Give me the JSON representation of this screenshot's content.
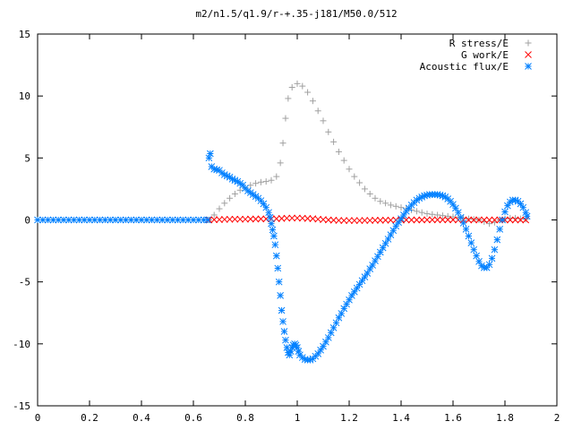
{
  "chart_data": {
    "type": "scatter",
    "title": "m2/n1.5/q1.9/r-+.35-j181/M50.0/512",
    "xlabel": "",
    "ylabel": "",
    "xlim": [
      0,
      2
    ],
    "ylim": [
      -15,
      15
    ],
    "xticks": [
      0,
      0.2,
      0.4,
      0.6,
      0.8,
      1,
      1.2,
      1.4,
      1.6,
      1.8,
      2
    ],
    "xtick_labels": [
      "0",
      "0.2",
      "0.4",
      "0.6",
      "0.8",
      "1",
      "1.2",
      "1.4",
      "1.6",
      "1.8",
      "2"
    ],
    "yticks": [
      -15,
      -10,
      -5,
      0,
      5,
      10,
      15
    ],
    "ytick_labels": [
      "-15",
      "-10",
      "-5",
      "0",
      "5",
      "10",
      "15"
    ],
    "grid": false,
    "legend_position": "top-right",
    "series": [
      {
        "name": "R stress/E",
        "marker": "plus",
        "color": "#a0a0a0",
        "points": [
          [
            0.66,
            0.0
          ],
          [
            0.68,
            0.4
          ],
          [
            0.7,
            0.9
          ],
          [
            0.72,
            1.35
          ],
          [
            0.74,
            1.75
          ],
          [
            0.76,
            2.1
          ],
          [
            0.78,
            2.4
          ],
          [
            0.8,
            2.6
          ],
          [
            0.82,
            2.8
          ],
          [
            0.84,
            2.95
          ],
          [
            0.86,
            3.05
          ],
          [
            0.88,
            3.1
          ],
          [
            0.9,
            3.2
          ],
          [
            0.92,
            3.5
          ],
          [
            0.935,
            4.6
          ],
          [
            0.945,
            6.2
          ],
          [
            0.955,
            8.2
          ],
          [
            0.965,
            9.8
          ],
          [
            0.98,
            10.7
          ],
          [
            1.0,
            11.0
          ],
          [
            1.02,
            10.8
          ],
          [
            1.04,
            10.3
          ],
          [
            1.06,
            9.6
          ],
          [
            1.08,
            8.8
          ],
          [
            1.1,
            8.0
          ],
          [
            1.12,
            7.1
          ],
          [
            1.14,
            6.3
          ],
          [
            1.16,
            5.5
          ],
          [
            1.18,
            4.8
          ],
          [
            1.2,
            4.1
          ],
          [
            1.22,
            3.5
          ],
          [
            1.24,
            3.0
          ],
          [
            1.26,
            2.5
          ],
          [
            1.28,
            2.1
          ],
          [
            1.3,
            1.75
          ],
          [
            1.32,
            1.5
          ],
          [
            1.34,
            1.35
          ],
          [
            1.36,
            1.2
          ],
          [
            1.38,
            1.1
          ],
          [
            1.4,
            1.0
          ],
          [
            1.42,
            0.9
          ],
          [
            1.44,
            0.8
          ],
          [
            1.46,
            0.7
          ],
          [
            1.48,
            0.6
          ],
          [
            1.5,
            0.5
          ],
          [
            1.52,
            0.45
          ],
          [
            1.54,
            0.4
          ],
          [
            1.56,
            0.35
          ],
          [
            1.58,
            0.3
          ],
          [
            1.6,
            0.25
          ],
          [
            1.62,
            0.2
          ],
          [
            1.64,
            0.15
          ],
          [
            1.66,
            0.1
          ],
          [
            1.68,
            0.05
          ],
          [
            1.7,
            0.0
          ],
          [
            1.72,
            -0.15
          ],
          [
            1.74,
            -0.3
          ],
          [
            1.76,
            -0.2
          ],
          [
            1.78,
            0.0
          ],
          [
            1.8,
            0.1
          ],
          [
            1.82,
            0.15
          ],
          [
            1.84,
            0.15
          ],
          [
            1.86,
            0.1
          ],
          [
            1.88,
            0.05
          ]
        ]
      },
      {
        "name": "G work/E",
        "marker": "cross",
        "color": "#ff0000",
        "points": [
          [
            0.66,
            0.0
          ],
          [
            0.68,
            0.02
          ],
          [
            0.7,
            0.03
          ],
          [
            0.72,
            0.04
          ],
          [
            0.74,
            0.05
          ],
          [
            0.76,
            0.06
          ],
          [
            0.78,
            0.06
          ],
          [
            0.8,
            0.06
          ],
          [
            0.82,
            0.07
          ],
          [
            0.84,
            0.07
          ],
          [
            0.86,
            0.08
          ],
          [
            0.88,
            0.08
          ],
          [
            0.9,
            0.08
          ],
          [
            0.92,
            0.1
          ],
          [
            0.94,
            0.12
          ],
          [
            0.96,
            0.14
          ],
          [
            0.98,
            0.15
          ],
          [
            1.0,
            0.15
          ],
          [
            1.02,
            0.14
          ],
          [
            1.04,
            0.12
          ],
          [
            1.06,
            0.1
          ],
          [
            1.08,
            0.06
          ],
          [
            1.1,
            0.03
          ],
          [
            1.12,
            0.0
          ],
          [
            1.14,
            -0.02
          ],
          [
            1.16,
            -0.04
          ],
          [
            1.18,
            -0.05
          ],
          [
            1.2,
            -0.05
          ],
          [
            1.22,
            -0.05
          ],
          [
            1.24,
            -0.05
          ],
          [
            1.26,
            -0.04
          ],
          [
            1.28,
            -0.04
          ],
          [
            1.3,
            -0.03
          ],
          [
            1.32,
            -0.03
          ],
          [
            1.34,
            -0.02
          ],
          [
            1.36,
            -0.02
          ],
          [
            1.38,
            -0.01
          ],
          [
            1.4,
            -0.01
          ],
          [
            1.42,
            0.0
          ],
          [
            1.44,
            0.0
          ],
          [
            1.46,
            0.0
          ],
          [
            1.48,
            0.0
          ],
          [
            1.5,
            0.01
          ],
          [
            1.52,
            0.01
          ],
          [
            1.54,
            0.01
          ],
          [
            1.56,
            0.01
          ],
          [
            1.58,
            0.01
          ],
          [
            1.6,
            0.01
          ],
          [
            1.62,
            0.0
          ],
          [
            1.64,
            0.0
          ],
          [
            1.66,
            0.0
          ],
          [
            1.68,
            0.0
          ],
          [
            1.7,
            0.0
          ],
          [
            1.72,
            0.0
          ],
          [
            1.74,
            0.0
          ],
          [
            1.76,
            0.0
          ],
          [
            1.78,
            0.0
          ],
          [
            1.8,
            0.0
          ],
          [
            1.82,
            0.0
          ],
          [
            1.84,
            0.0
          ],
          [
            1.86,
            0.0
          ],
          [
            1.88,
            0.0
          ]
        ]
      },
      {
        "name": "Acoustic flux/E",
        "marker": "star",
        "color": "#0080ff",
        "points": [
          [
            0.0,
            0.0
          ],
          [
            0.02,
            0.0
          ],
          [
            0.04,
            0.0
          ],
          [
            0.06,
            0.0
          ],
          [
            0.08,
            0.0
          ],
          [
            0.1,
            0.0
          ],
          [
            0.12,
            0.0
          ],
          [
            0.14,
            0.0
          ],
          [
            0.16,
            0.0
          ],
          [
            0.18,
            0.0
          ],
          [
            0.2,
            0.0
          ],
          [
            0.22,
            0.0
          ],
          [
            0.24,
            0.0
          ],
          [
            0.26,
            0.0
          ],
          [
            0.28,
            0.0
          ],
          [
            0.3,
            0.0
          ],
          [
            0.32,
            0.0
          ],
          [
            0.34,
            0.0
          ],
          [
            0.36,
            0.0
          ],
          [
            0.38,
            0.0
          ],
          [
            0.4,
            0.0
          ],
          [
            0.42,
            0.0
          ],
          [
            0.44,
            0.0
          ],
          [
            0.46,
            0.0
          ],
          [
            0.48,
            0.0
          ],
          [
            0.5,
            0.0
          ],
          [
            0.52,
            0.0
          ],
          [
            0.54,
            0.0
          ],
          [
            0.56,
            0.0
          ],
          [
            0.58,
            0.0
          ],
          [
            0.6,
            0.0
          ],
          [
            0.62,
            0.0
          ],
          [
            0.64,
            0.0
          ],
          [
            0.655,
            0.0
          ],
          [
            0.66,
            5.0
          ],
          [
            0.665,
            5.35
          ],
          [
            0.67,
            4.3
          ],
          [
            0.68,
            4.1
          ],
          [
            0.69,
            4.05
          ],
          [
            0.7,
            4.0
          ],
          [
            0.71,
            3.8
          ],
          [
            0.72,
            3.65
          ],
          [
            0.73,
            3.55
          ],
          [
            0.74,
            3.45
          ],
          [
            0.75,
            3.3
          ],
          [
            0.76,
            3.2
          ],
          [
            0.77,
            3.1
          ],
          [
            0.78,
            2.95
          ],
          [
            0.79,
            2.8
          ],
          [
            0.8,
            2.55
          ],
          [
            0.81,
            2.35
          ],
          [
            0.82,
            2.2
          ],
          [
            0.83,
            2.05
          ],
          [
            0.84,
            1.9
          ],
          [
            0.85,
            1.75
          ],
          [
            0.86,
            1.55
          ],
          [
            0.87,
            1.3
          ],
          [
            0.88,
            1.0
          ],
          [
            0.89,
            0.6
          ],
          [
            0.895,
            0.2
          ],
          [
            0.9,
            -0.3
          ],
          [
            0.905,
            -0.8
          ],
          [
            0.91,
            -1.3
          ],
          [
            0.915,
            -2.0
          ],
          [
            0.92,
            -2.9
          ],
          [
            0.925,
            -3.9
          ],
          [
            0.93,
            -5.0
          ],
          [
            0.935,
            -6.1
          ],
          [
            0.94,
            -7.3
          ],
          [
            0.945,
            -8.2
          ],
          [
            0.95,
            -9.0
          ],
          [
            0.955,
            -9.7
          ],
          [
            0.96,
            -10.3
          ],
          [
            0.965,
            -10.7
          ],
          [
            0.97,
            -10.9
          ],
          [
            0.975,
            -10.6
          ],
          [
            0.98,
            -10.3
          ],
          [
            0.985,
            -10.1
          ],
          [
            0.99,
            -10.0
          ],
          [
            0.995,
            -10.1
          ],
          [
            1.0,
            -10.3
          ],
          [
            1.005,
            -10.6
          ],
          [
            1.01,
            -10.9
          ],
          [
            1.02,
            -11.1
          ],
          [
            1.03,
            -11.25
          ],
          [
            1.04,
            -11.3
          ],
          [
            1.05,
            -11.3
          ],
          [
            1.06,
            -11.2
          ],
          [
            1.07,
            -11.0
          ],
          [
            1.08,
            -10.8
          ],
          [
            1.09,
            -10.5
          ],
          [
            1.1,
            -10.2
          ],
          [
            1.11,
            -9.85
          ],
          [
            1.12,
            -9.5
          ],
          [
            1.13,
            -9.1
          ],
          [
            1.14,
            -8.7
          ],
          [
            1.15,
            -8.3
          ],
          [
            1.16,
            -7.9
          ],
          [
            1.17,
            -7.55
          ],
          [
            1.18,
            -7.15
          ],
          [
            1.19,
            -6.8
          ],
          [
            1.2,
            -6.45
          ],
          [
            1.21,
            -6.1
          ],
          [
            1.22,
            -5.8
          ],
          [
            1.23,
            -5.5
          ],
          [
            1.24,
            -5.2
          ],
          [
            1.25,
            -4.9
          ],
          [
            1.26,
            -4.6
          ],
          [
            1.27,
            -4.3
          ],
          [
            1.28,
            -3.95
          ],
          [
            1.29,
            -3.65
          ],
          [
            1.3,
            -3.3
          ],
          [
            1.31,
            -2.95
          ],
          [
            1.32,
            -2.6
          ],
          [
            1.33,
            -2.25
          ],
          [
            1.34,
            -1.9
          ],
          [
            1.35,
            -1.55
          ],
          [
            1.36,
            -1.2
          ],
          [
            1.37,
            -0.85
          ],
          [
            1.38,
            -0.5
          ],
          [
            1.39,
            -0.2
          ],
          [
            1.4,
            0.1
          ],
          [
            1.41,
            0.4
          ],
          [
            1.42,
            0.7
          ],
          [
            1.43,
            0.95
          ],
          [
            1.44,
            1.2
          ],
          [
            1.45,
            1.4
          ],
          [
            1.46,
            1.6
          ],
          [
            1.47,
            1.75
          ],
          [
            1.48,
            1.85
          ],
          [
            1.49,
            1.95
          ],
          [
            1.5,
            2.0
          ],
          [
            1.51,
            2.05
          ],
          [
            1.52,
            2.05
          ],
          [
            1.53,
            2.05
          ],
          [
            1.54,
            2.05
          ],
          [
            1.55,
            2.0
          ],
          [
            1.56,
            1.95
          ],
          [
            1.57,
            1.85
          ],
          [
            1.58,
            1.7
          ],
          [
            1.59,
            1.5
          ],
          [
            1.6,
            1.25
          ],
          [
            1.61,
            0.95
          ],
          [
            1.62,
            0.6
          ],
          [
            1.63,
            0.2
          ],
          [
            1.64,
            -0.25
          ],
          [
            1.65,
            -0.75
          ],
          [
            1.66,
            -1.3
          ],
          [
            1.67,
            -1.85
          ],
          [
            1.68,
            -2.4
          ],
          [
            1.69,
            -2.9
          ],
          [
            1.7,
            -3.35
          ],
          [
            1.71,
            -3.7
          ],
          [
            1.72,
            -3.85
          ],
          [
            1.73,
            -3.85
          ],
          [
            1.74,
            -3.6
          ],
          [
            1.75,
            -3.1
          ],
          [
            1.76,
            -2.4
          ],
          [
            1.77,
            -1.6
          ],
          [
            1.78,
            -0.75
          ],
          [
            1.79,
            0.0
          ],
          [
            1.8,
            0.65
          ],
          [
            1.81,
            1.15
          ],
          [
            1.82,
            1.45
          ],
          [
            1.83,
            1.6
          ],
          [
            1.84,
            1.6
          ],
          [
            1.85,
            1.5
          ],
          [
            1.86,
            1.3
          ],
          [
            1.87,
            1.0
          ],
          [
            1.88,
            0.6
          ],
          [
            1.885,
            0.3
          ]
        ]
      }
    ]
  }
}
